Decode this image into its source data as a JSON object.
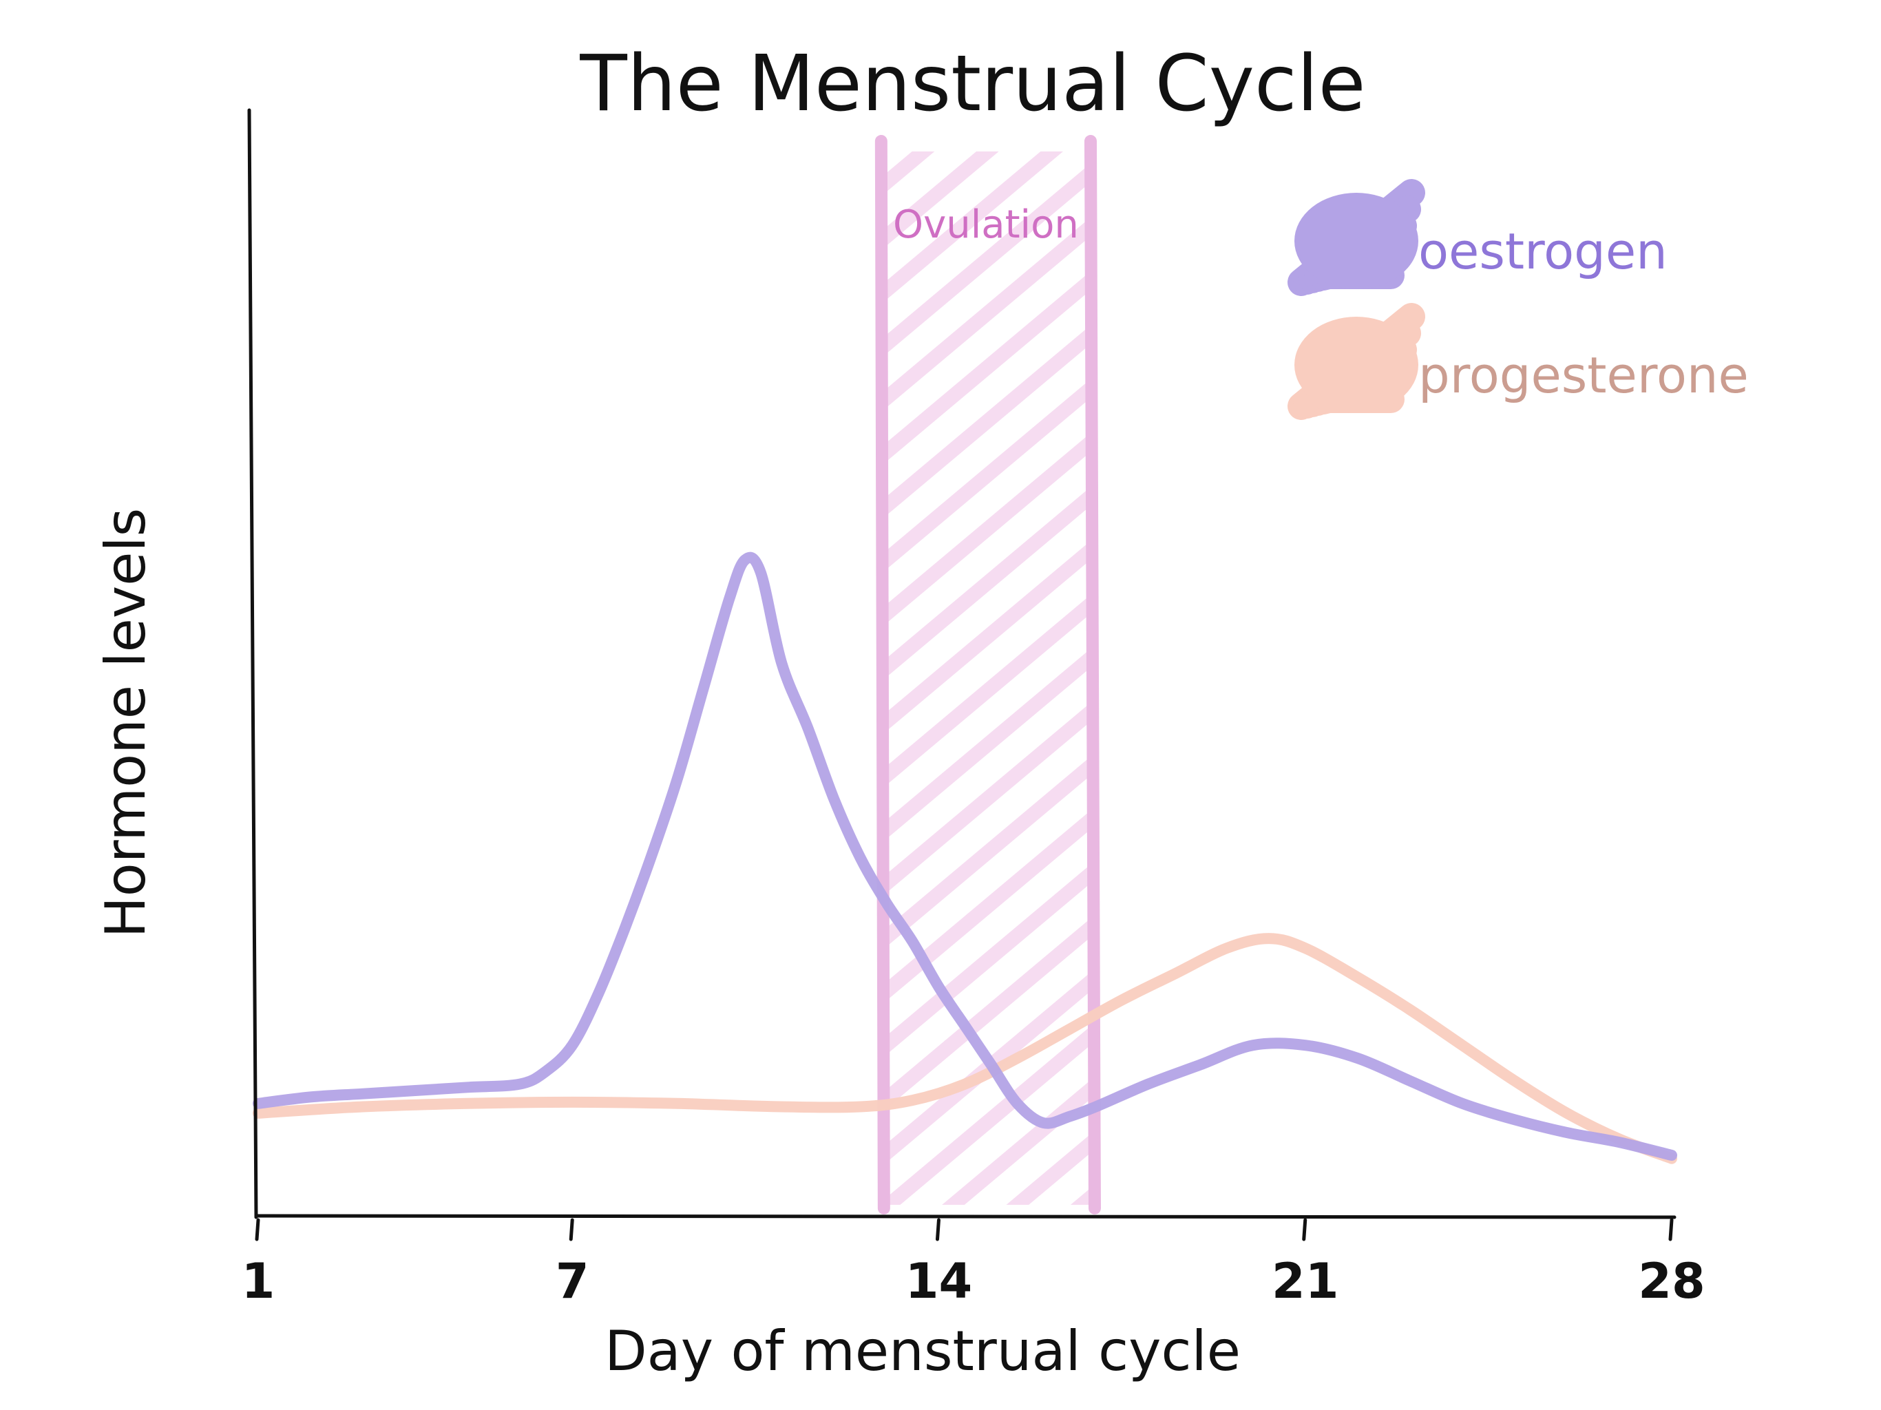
{
  "chart_data": {
    "type": "line",
    "title": "The Menstrual Cycle",
    "xlabel": "Day of menstrual cycle",
    "ylabel": "Hormone levels",
    "xlim": [
      1,
      28
    ],
    "ylim": [
      0,
      100
    ],
    "xticks": [
      1,
      7,
      14,
      21,
      28
    ],
    "grid": false,
    "legend_position": "top-right",
    "annotation": {
      "label": "Ovulation",
      "x_start": 12.9,
      "x_end": 16.9,
      "color": "#e9b8e1",
      "text_color": "#cf6fc3"
    },
    "series": [
      {
        "name": "oestrogen",
        "color": "#b3a3e6",
        "label_color": "#8e76d8",
        "x": [
          1,
          2,
          3,
          4,
          5,
          6,
          6.5,
          7,
          7.5,
          8,
          8.5,
          9,
          9.5,
          10,
          10.3,
          10.6,
          11,
          11.5,
          12,
          12.5,
          13,
          13.5,
          14,
          14.5,
          15,
          15.5,
          16,
          16.5,
          17,
          18,
          19,
          20,
          21,
          22,
          23,
          24,
          25,
          26,
          27,
          28
        ],
        "y": [
          13,
          14,
          14.5,
          15,
          15.5,
          16,
          18,
          22,
          30,
          40,
          51,
          63,
          77,
          91,
          97,
          95,
          81,
          71,
          60,
          51,
          44,
          38,
          31,
          25,
          19,
          13,
          10,
          11,
          12.5,
          16,
          19,
          22,
          22,
          20,
          16.5,
          13,
          10.5,
          8.5,
          7,
          5
        ]
      },
      {
        "name": "progesterone",
        "color": "#f9cdbf",
        "label_color": "#cb9d90",
        "x": [
          1,
          3,
          5,
          7,
          9,
          11,
          12.5,
          13.5,
          14.5,
          15.5,
          16.5,
          17.5,
          18.5,
          19.5,
          20.3,
          21,
          22,
          23,
          24,
          25,
          26,
          27,
          28
        ],
        "y": [
          11.5,
          12.5,
          13,
          13.2,
          13,
          12.5,
          12.5,
          13.5,
          16,
          20,
          24.5,
          29,
          33,
          37,
          38.5,
          37,
          32.5,
          27.5,
          22,
          16.5,
          11.5,
          7.5,
          4.5
        ]
      }
    ]
  }
}
